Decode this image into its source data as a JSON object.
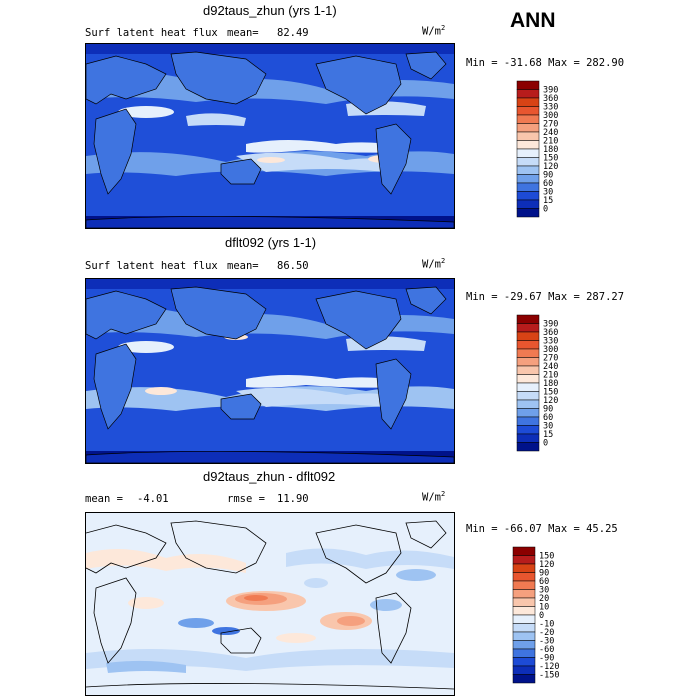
{
  "season": "ANN",
  "panels": [
    {
      "title": "d92taus_zhun (yrs 1-1)",
      "left_label": "Surf latent heat flux",
      "stat_label": "mean=",
      "stat_value": "82.49",
      "units": "W/m",
      "units_exp": "2",
      "minmax": "Min = -31.68 Max = 282.90",
      "colorbar": {
        "labels": [
          "390",
          "360",
          "330",
          "300",
          "270",
          "240",
          "210",
          "180",
          "150",
          "120",
          "90",
          "60",
          "30",
          "15",
          "0"
        ],
        "colors": [
          "#8b0000",
          "#b71c1c",
          "#d84315",
          "#e8562f",
          "#f07a52",
          "#f5a07e",
          "#f9c6ac",
          "#fde8da",
          "#e6f0fc",
          "#c6dcf8",
          "#9ec3f2",
          "#6fa0ea",
          "#3f74e0",
          "#1d4bd6",
          "#0d2eb8",
          "#00128a"
        ]
      }
    },
    {
      "title": "dflt092 (yrs 1-1)",
      "left_label": "Surf latent heat flux",
      "stat_label": "mean=",
      "stat_value": "86.50",
      "units": "W/m",
      "units_exp": "2",
      "minmax": "Min = -29.67 Max = 287.27",
      "colorbar": {
        "labels": [
          "390",
          "360",
          "330",
          "300",
          "270",
          "240",
          "210",
          "180",
          "150",
          "120",
          "90",
          "60",
          "30",
          "15",
          "0"
        ],
        "colors": [
          "#8b0000",
          "#b71c1c",
          "#d84315",
          "#e8562f",
          "#f07a52",
          "#f5a07e",
          "#f9c6ac",
          "#fde8da",
          "#e6f0fc",
          "#c6dcf8",
          "#9ec3f2",
          "#6fa0ea",
          "#3f74e0",
          "#1d4bd6",
          "#0d2eb8",
          "#00128a"
        ]
      }
    },
    {
      "title": "d92taus_zhun - dflt092",
      "left_label": "mean =",
      "left_value": "-4.01",
      "stat_label": "rmse =",
      "stat_value": "11.90",
      "units": "W/m",
      "units_exp": "2",
      "minmax": "Min = -66.07 Max =  45.25",
      "colorbar": {
        "labels": [
          "150",
          "120",
          "90",
          "60",
          "30",
          "20",
          "10",
          "0",
          "-10",
          "-20",
          "-30",
          "-60",
          "-90",
          "-120",
          "-150"
        ],
        "colors": [
          "#8b0000",
          "#b71c1c",
          "#d84315",
          "#e8562f",
          "#f07a52",
          "#f5a07e",
          "#f9c6ac",
          "#fde8da",
          "#e6f0fc",
          "#c6dcf8",
          "#9ec3f2",
          "#6fa0ea",
          "#3f74e0",
          "#1d4bd6",
          "#0d2eb8",
          "#00128a"
        ]
      }
    }
  ]
}
